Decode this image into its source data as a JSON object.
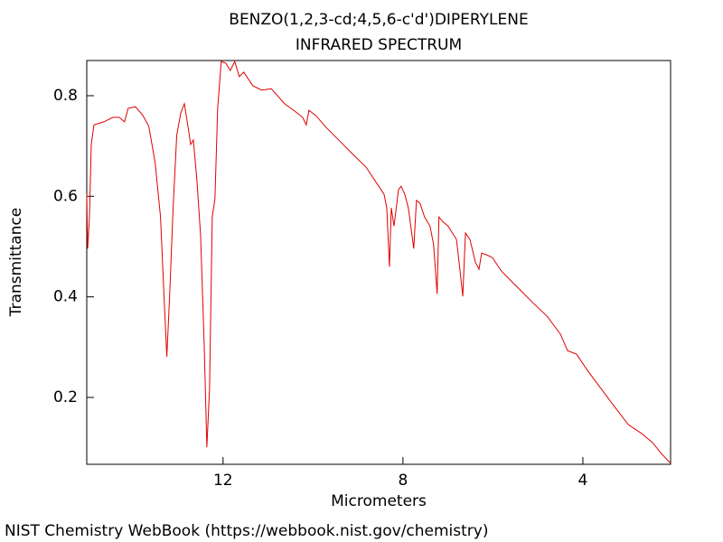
{
  "chart_data": {
    "type": "line",
    "title": "BENZO(1,2,3-cd;4,5,6-c'd')DIPERYLENE",
    "subtitle": "INFRARED SPECTRUM",
    "x_label": "Micrometers",
    "y_label": "Transmittance",
    "source": "NIST Chemistry WebBook (https://webbook.nist.gov/chemistry)",
    "xlim": [
      15.03,
      2.05
    ],
    "ylim": [
      0.067,
      0.87
    ],
    "xticks": [
      12,
      8,
      4
    ],
    "yticks": [
      0.2,
      0.4,
      0.6,
      0.8
    ],
    "color": "#e00000",
    "x": [
      15.03,
      15.01,
      14.97,
      14.93,
      14.87,
      14.65,
      14.45,
      14.31,
      14.19,
      14.11,
      13.95,
      13.79,
      13.65,
      13.51,
      13.39,
      13.31,
      13.25,
      13.19,
      13.11,
      13.03,
      12.94,
      12.86,
      12.78,
      12.72,
      12.66,
      12.58,
      12.5,
      12.42,
      12.36,
      12.3,
      12.24,
      12.18,
      12.12,
      12.04,
      11.94,
      11.84,
      11.74,
      11.64,
      11.54,
      11.34,
      11.14,
      10.93,
      10.63,
      10.43,
      10.23,
      10.15,
      10.09,
      9.93,
      9.73,
      9.43,
      9.13,
      8.82,
      8.62,
      8.42,
      8.36,
      8.3,
      8.26,
      8.2,
      8.16,
      8.1,
      8.04,
      7.96,
      7.88,
      7.8,
      7.76,
      7.7,
      7.62,
      7.52,
      7.4,
      7.32,
      7.24,
      7.2,
      7.12,
      7.0,
      6.81,
      6.73,
      6.67,
      6.61,
      6.51,
      6.39,
      6.31,
      6.25,
      6.15,
      6.01,
      5.81,
      5.51,
      5.11,
      4.8,
      4.5,
      4.34,
      4.14,
      3.9,
      3.6,
      3.3,
      2.99,
      2.69,
      2.45,
      2.25,
      2.05
    ],
    "values": [
      0.604,
      0.496,
      0.559,
      0.703,
      0.742,
      0.748,
      0.757,
      0.757,
      0.748,
      0.775,
      0.778,
      0.762,
      0.739,
      0.667,
      0.559,
      0.397,
      0.281,
      0.397,
      0.577,
      0.721,
      0.766,
      0.784,
      0.739,
      0.703,
      0.712,
      0.631,
      0.523,
      0.308,
      0.101,
      0.218,
      0.559,
      0.595,
      0.775,
      0.868,
      0.865,
      0.85,
      0.868,
      0.838,
      0.847,
      0.82,
      0.811,
      0.814,
      0.784,
      0.771,
      0.757,
      0.742,
      0.771,
      0.76,
      0.739,
      0.712,
      0.685,
      0.658,
      0.631,
      0.604,
      0.577,
      0.46,
      0.577,
      0.541,
      0.568,
      0.613,
      0.62,
      0.604,
      0.577,
      0.523,
      0.496,
      0.592,
      0.586,
      0.559,
      0.541,
      0.505,
      0.406,
      0.559,
      0.55,
      0.541,
      0.514,
      0.451,
      0.401,
      0.527,
      0.514,
      0.469,
      0.455,
      0.487,
      0.484,
      0.478,
      0.451,
      0.424,
      0.388,
      0.362,
      0.326,
      0.293,
      0.286,
      0.254,
      0.218,
      0.182,
      0.146,
      0.128,
      0.11,
      0.088,
      0.069
    ]
  }
}
